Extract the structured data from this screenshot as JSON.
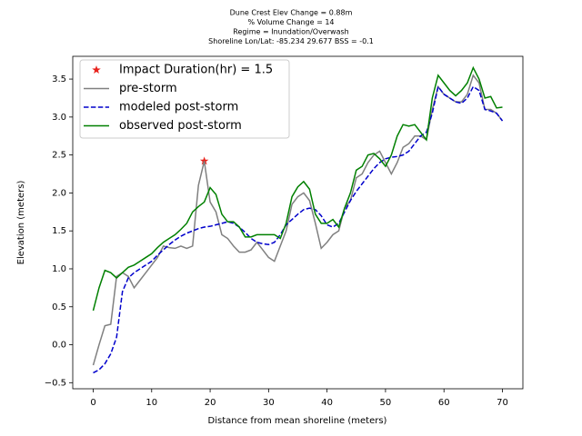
{
  "chart_data": {
    "type": "line",
    "title": [
      "Dune Crest Elev Change = 0.88m",
      "% Volume Change = 14",
      "Regime = Inundation/Overwash",
      "Shoreline Lon/Lat: -85.234 29.677   BSS = -0.1"
    ],
    "xlabel": "Distance from mean shoreline (meters)",
    "ylabel": "Elevation (meters)",
    "x": [
      0,
      1,
      2,
      3,
      4,
      5,
      6,
      7,
      8,
      9,
      10,
      11,
      12,
      13,
      14,
      15,
      16,
      17,
      18,
      19,
      20,
      21,
      22,
      23,
      24,
      25,
      26,
      27,
      28,
      29,
      30,
      31,
      32,
      33,
      34,
      35,
      36,
      37,
      38,
      39,
      40,
      41,
      42,
      43,
      44,
      45,
      46,
      47,
      48,
      49,
      50,
      51,
      52,
      53,
      54,
      55,
      56,
      57,
      58,
      59,
      60,
      61,
      62,
      63,
      64,
      65,
      66,
      67,
      68,
      69,
      70
    ],
    "series": [
      {
        "name": "Impact Duration(hr) = 1.5",
        "color": "#e8221c",
        "marker": "star",
        "x": [
          19
        ],
        "values": [
          2.42
        ]
      },
      {
        "name": "pre-storm",
        "color": "#808080",
        "linestyle": "solid",
        "values": [
          -0.27,
          0.0,
          0.25,
          0.27,
          0.9,
          0.95,
          0.9,
          0.75,
          0.85,
          0.95,
          1.05,
          1.15,
          1.3,
          1.28,
          1.27,
          1.3,
          1.27,
          1.3,
          2.1,
          2.42,
          1.88,
          1.75,
          1.45,
          1.4,
          1.3,
          1.22,
          1.22,
          1.25,
          1.35,
          1.25,
          1.15,
          1.1,
          1.3,
          1.5,
          1.85,
          1.95,
          2.0,
          1.9,
          1.6,
          1.27,
          1.35,
          1.45,
          1.5,
          1.8,
          1.9,
          2.2,
          2.25,
          2.4,
          2.5,
          2.55,
          2.4,
          2.25,
          2.4,
          2.6,
          2.65,
          2.75,
          2.75,
          2.7,
          3.1,
          3.4,
          3.3,
          3.25,
          3.2,
          3.2,
          3.3,
          3.55,
          3.45,
          3.1,
          3.1,
          3.05,
          2.95
        ]
      },
      {
        "name": "modeled post-storm",
        "color": "#0000cc",
        "linestyle": "dashed",
        "values": [
          -0.37,
          -0.33,
          -0.25,
          -0.12,
          0.1,
          0.7,
          0.88,
          0.95,
          1.0,
          1.05,
          1.1,
          1.18,
          1.25,
          1.32,
          1.38,
          1.43,
          1.47,
          1.5,
          1.53,
          1.55,
          1.56,
          1.58,
          1.6,
          1.62,
          1.6,
          1.55,
          1.48,
          1.4,
          1.35,
          1.33,
          1.32,
          1.35,
          1.45,
          1.58,
          1.65,
          1.72,
          1.78,
          1.8,
          1.78,
          1.7,
          1.58,
          1.55,
          1.6,
          1.75,
          1.9,
          2.02,
          2.12,
          2.22,
          2.32,
          2.4,
          2.45,
          2.47,
          2.48,
          2.5,
          2.55,
          2.65,
          2.75,
          2.8,
          3.05,
          3.4,
          3.3,
          3.25,
          3.2,
          3.18,
          3.25,
          3.4,
          3.35,
          3.1,
          3.08,
          3.05,
          2.95
        ]
      },
      {
        "name": "observed post-storm",
        "color": "#008000",
        "linestyle": "solid",
        "values": [
          0.45,
          0.75,
          0.98,
          0.95,
          0.88,
          0.95,
          1.02,
          1.05,
          1.1,
          1.15,
          1.2,
          1.28,
          1.35,
          1.4,
          1.45,
          1.52,
          1.6,
          1.75,
          1.82,
          1.88,
          2.07,
          1.98,
          1.72,
          1.62,
          1.62,
          1.55,
          1.42,
          1.42,
          1.45,
          1.45,
          1.45,
          1.45,
          1.4,
          1.6,
          1.95,
          2.08,
          2.15,
          2.05,
          1.72,
          1.6,
          1.6,
          1.65,
          1.55,
          1.8,
          2.0,
          2.3,
          2.35,
          2.5,
          2.52,
          2.45,
          2.35,
          2.5,
          2.75,
          2.9,
          2.88,
          2.9,
          2.8,
          2.7,
          3.25,
          3.55,
          3.45,
          3.35,
          3.28,
          3.35,
          3.45,
          3.65,
          3.5,
          3.25,
          3.27,
          3.12,
          3.13
        ]
      }
    ],
    "xlim": [
      -3.5,
      73.5
    ],
    "ylim": [
      -0.58,
      3.8
    ],
    "xticks": [
      0,
      10,
      20,
      30,
      40,
      50,
      60,
      70
    ],
    "yticks": [
      {
        "value": -0.5,
        "label": "−0.5"
      },
      {
        "value": 0,
        "label": "0.0"
      },
      0.5,
      {
        "value": 1,
        "label": "1.0"
      },
      1.5,
      {
        "value": 2,
        "label": "2.0"
      },
      2.5,
      {
        "value": 3,
        "label": "3.0"
      },
      3.5
    ],
    "legend": "upper left"
  }
}
